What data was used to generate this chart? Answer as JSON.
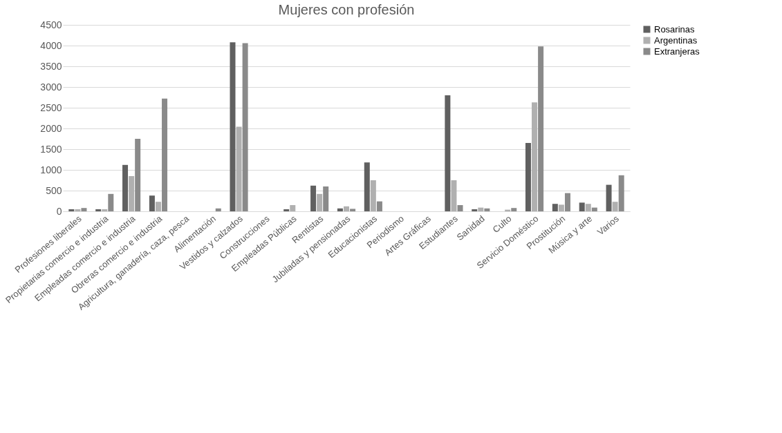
{
  "chart_data": {
    "type": "bar",
    "title": "Mujeres con profesión",
    "categories": [
      "Profesiones liberales",
      "Propietarias comercio e industria",
      "Empleadas comercio e industria",
      "Obreras comercio e industria",
      "Agricultura, ganadería, caza, pesca",
      "Alimentación",
      "Vestidos y calzados",
      "Construcciones",
      "Empleadas Públicas",
      "Rentistas",
      "Jubiladas y pensionadas",
      "Educacionistas",
      "Periodismo",
      "Artes Gráficas",
      "Estudiantes",
      "Sanidad",
      "Culto",
      "Servicio Doméstico",
      "Prostitución",
      "Música y arte",
      "Varios"
    ],
    "series": [
      {
        "name": "Rosarinas",
        "color": "#606060",
        "values": [
          50,
          50,
          1120,
          380,
          0,
          0,
          4080,
          0,
          50,
          620,
          70,
          1180,
          0,
          0,
          2800,
          50,
          0,
          1650,
          180,
          210,
          640
        ]
      },
      {
        "name": "Argentinas",
        "color": "#b0b0b0",
        "values": [
          50,
          50,
          850,
          230,
          0,
          0,
          2040,
          0,
          150,
          420,
          120,
          750,
          0,
          0,
          750,
          90,
          40,
          2630,
          160,
          180,
          230
        ]
      },
      {
        "name": "Extranjeras",
        "color": "#8a8a8a",
        "values": [
          80,
          420,
          1750,
          2720,
          0,
          70,
          4060,
          0,
          0,
          600,
          60,
          240,
          0,
          0,
          150,
          70,
          80,
          3980,
          440,
          90,
          870
        ]
      }
    ],
    "ylim": [
      0,
      4500
    ],
    "yticks": [
      0,
      500,
      1000,
      1500,
      2000,
      2500,
      3000,
      3500,
      4000,
      4500
    ],
    "grid": "y",
    "legend": "right"
  }
}
